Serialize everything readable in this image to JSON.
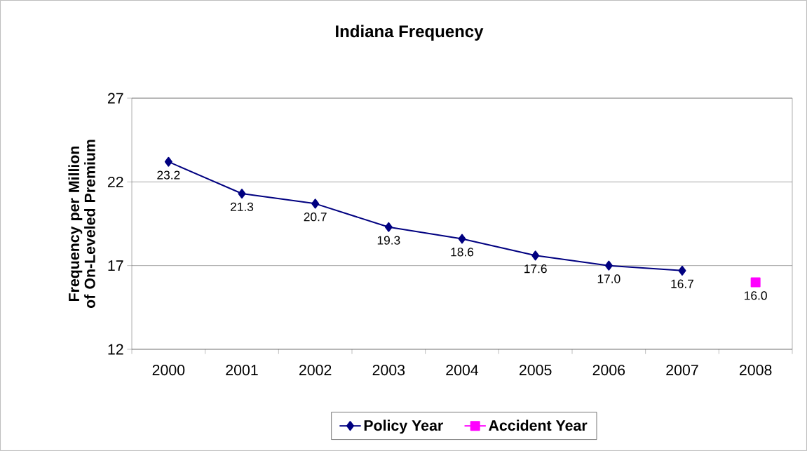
{
  "chart_data": {
    "type": "line",
    "title": "Indiana Frequency",
    "ylabel": "Frequency per Million of On-Leveled Premium",
    "categories": [
      "2000",
      "2001",
      "2002",
      "2003",
      "2004",
      "2005",
      "2006",
      "2007",
      "2008"
    ],
    "series": [
      {
        "name": "Policy Year",
        "color": "#000080",
        "marker": "diamond",
        "values": [
          23.2,
          21.3,
          20.7,
          19.3,
          18.6,
          17.6,
          17.0,
          16.7,
          null
        ],
        "value_labels": [
          "23.2",
          "21.3",
          "20.7",
          "19.3",
          "18.6",
          "17.6",
          "17.0",
          "16.7",
          null
        ]
      },
      {
        "name": "Accident Year",
        "color": "#ff00ff",
        "marker": "square",
        "values": [
          null,
          null,
          null,
          null,
          null,
          null,
          null,
          null,
          16.0
        ],
        "value_labels": [
          null,
          null,
          null,
          null,
          null,
          null,
          null,
          null,
          "16.0"
        ]
      }
    ],
    "ylim": [
      12,
      27
    ],
    "yticks": [
      12,
      17,
      22,
      27
    ],
    "grid": "y",
    "legend": "bottom",
    "line_style": "solid"
  }
}
